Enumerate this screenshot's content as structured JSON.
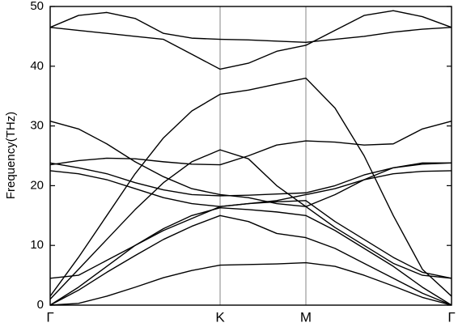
{
  "chart_data": {
    "type": "line",
    "ylabel": "Frequency(THz)",
    "x": [
      0,
      0.35,
      0.7,
      1.05,
      1.4,
      1.75,
      2.1,
      2.45,
      2.8,
      3.16,
      3.52,
      3.88,
      4.24,
      4.6,
      4.96
    ],
    "xlim": [
      0,
      4.96
    ],
    "xticks": [
      {
        "value": 0,
        "label": "Γ"
      },
      {
        "value": 2.1,
        "label": "K"
      },
      {
        "value": 3.16,
        "label": "M"
      },
      {
        "value": 4.96,
        "label": "Γ"
      }
    ],
    "ylim": [
      0,
      50
    ],
    "yticks": [
      0,
      10,
      20,
      30,
      40,
      50
    ],
    "series": [
      {
        "color": "#000000",
        "values": [
          0,
          0.3,
          1.5,
          3,
          4.6,
          5.8,
          6.7,
          6.8,
          6.9,
          7.1,
          6.5,
          5,
          3.2,
          1.3,
          0
        ]
      },
      {
        "color": "#000000",
        "values": [
          0,
          2.5,
          5.5,
          8.3,
          11,
          13.2,
          15,
          14,
          12,
          11.3,
          9.5,
          7,
          4.5,
          2,
          0
        ]
      },
      {
        "color": "#000000",
        "values": [
          0,
          3,
          6.5,
          10,
          12.8,
          15,
          16.3,
          16,
          15.6,
          15,
          12.5,
          9.5,
          6.5,
          3,
          0
        ]
      },
      {
        "color": "#000000",
        "values": [
          4.5,
          5,
          7.5,
          10,
          12.5,
          14.5,
          16.5,
          17,
          17.3,
          17.5,
          14,
          11,
          8,
          5.5,
          4.5
        ]
      },
      {
        "color": "#000000",
        "values": [
          1.5,
          8,
          15,
          22,
          28,
          32.5,
          35.3,
          36,
          37,
          38,
          33,
          25,
          15,
          6,
          1.5
        ]
      },
      {
        "color": "#000000",
        "values": [
          1,
          6,
          11,
          16,
          20.5,
          24,
          26,
          24.5,
          20,
          16.5,
          13,
          10,
          7,
          5,
          4.5
        ]
      },
      {
        "color": "#000000",
        "values": [
          22.5,
          22,
          21,
          19.5,
          18,
          17,
          16.5,
          17,
          17.5,
          18.5,
          19.5,
          21,
          22,
          22.4,
          22.5
        ]
      },
      {
        "color": "#000000",
        "values": [
          23.8,
          23,
          22,
          20.5,
          19.3,
          18.5,
          18.3,
          18.4,
          18.6,
          18.8,
          20,
          21.8,
          23,
          23.6,
          23.8
        ]
      },
      {
        "color": "#000000",
        "values": [
          23.5,
          24.2,
          24.6,
          24.5,
          24,
          23.6,
          23.5,
          25,
          26.8,
          27.5,
          27.3,
          26.8,
          27,
          29.5,
          30.8
        ]
      },
      {
        "color": "#000000",
        "values": [
          30.8,
          29.5,
          27,
          24,
          21.5,
          19.5,
          18.5,
          18,
          17,
          16.5,
          18.5,
          21,
          23,
          23.8,
          23.8
        ]
      },
      {
        "color": "#000000",
        "values": [
          46.5,
          48.5,
          49,
          48,
          45.5,
          44.7,
          44.5,
          44.4,
          44.2,
          44,
          44.5,
          45,
          45.7,
          46.2,
          46.5
        ]
      },
      {
        "color": "#000000",
        "values": [
          46.5,
          46,
          45.5,
          45,
          44.5,
          42,
          39.5,
          40.5,
          42.5,
          43.5,
          46,
          48.5,
          49.3,
          48.3,
          46.5
        ]
      }
    ]
  }
}
